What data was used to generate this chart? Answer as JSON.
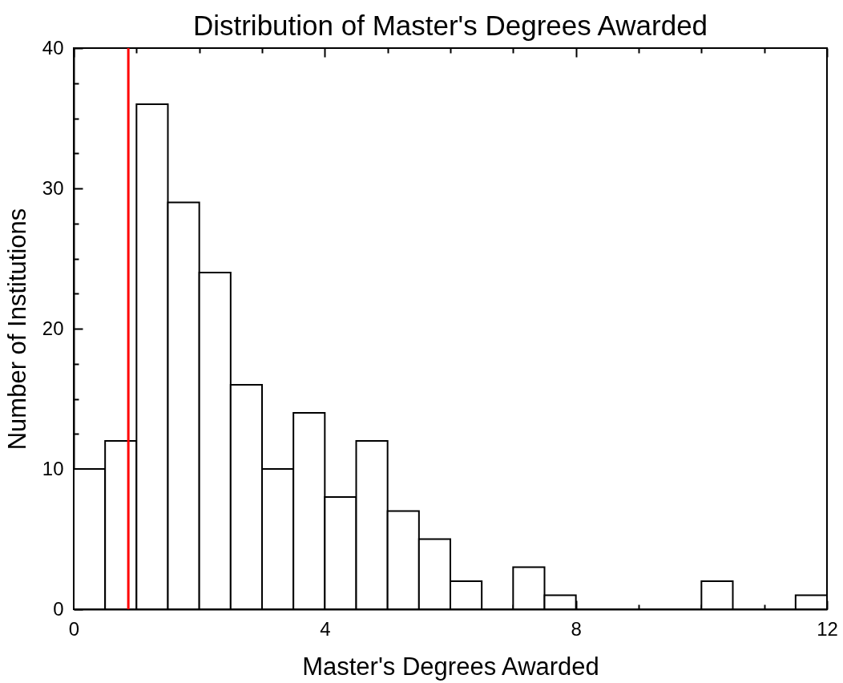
{
  "chart_data": {
    "type": "histogram",
    "title": "Distribution of Master's Degrees Awarded",
    "xlabel": "Master's Degrees Awarded",
    "ylabel": "Number of Institutions",
    "bins": [
      0,
      0.5,
      1,
      1.5,
      2,
      2.5,
      3,
      3.5,
      4,
      4.5,
      5,
      5.5,
      6,
      6.5,
      7,
      7.5,
      8,
      8.5,
      9,
      9.5,
      10,
      10.5,
      11,
      11.5,
      12
    ],
    "values": [
      10,
      12,
      36,
      29,
      24,
      16,
      10,
      14,
      8,
      12,
      7,
      5,
      2,
      0,
      3,
      1,
      0,
      0,
      0,
      0,
      2,
      0,
      0,
      1
    ],
    "color": "#ffffff",
    "xlim": [
      0,
      12
    ],
    "ylim": [
      0,
      40
    ],
    "xticks": [
      0,
      {
        "value": 1,
        "label": null
      },
      {
        "value": 2,
        "label": null
      },
      {
        "value": 3,
        "label": null
      },
      4,
      {
        "value": 5,
        "label": null
      },
      {
        "value": 6,
        "label": null
      },
      {
        "value": 7,
        "label": null
      },
      8,
      {
        "value": 9,
        "label": null
      },
      {
        "value": 10,
        "label": null
      },
      {
        "value": 11,
        "label": null
      },
      12
    ],
    "yticks": [
      0,
      {
        "value": 2.5,
        "label": null
      },
      {
        "value": 5,
        "label": null
      },
      {
        "value": 7.5,
        "label": null
      },
      10,
      {
        "value": 12.5,
        "label": null
      },
      {
        "value": 15,
        "label": null
      },
      {
        "value": 17.5,
        "label": null
      },
      20,
      {
        "value": 22.5,
        "label": null
      },
      {
        "value": 25,
        "label": null
      },
      {
        "value": 27.5,
        "label": null
      },
      30,
      {
        "value": 32.5,
        "label": null
      },
      {
        "value": 35,
        "label": null
      },
      {
        "value": 37.5,
        "label": null
      },
      40
    ],
    "ref_lines": [
      {
        "axis": "x",
        "value": 0.87,
        "color": "#ff0000"
      }
    ]
  }
}
